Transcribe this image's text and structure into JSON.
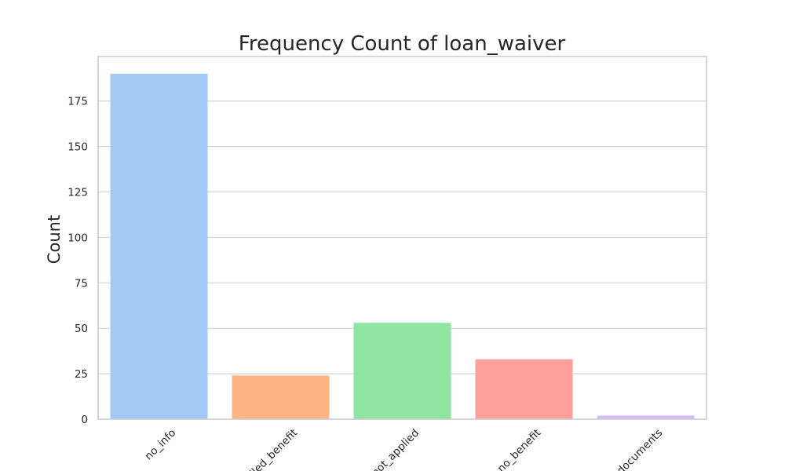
{
  "chart_data": {
    "type": "bar",
    "title": "Frequency Count of loan_waiver",
    "xlabel": "",
    "ylabel": "Count",
    "categories": [
      "no_info",
      "availed_benefit",
      "not_applied",
      "no_benefit",
      "no_documents"
    ],
    "values": [
      190,
      24,
      53,
      33,
      2
    ],
    "colors": [
      "#a1c9f4",
      "#ffb482",
      "#8de5a1",
      "#ff9f9b",
      "#d0bbff"
    ],
    "yticks": [
      0,
      25,
      50,
      75,
      100,
      125,
      150,
      175
    ],
    "ylim": [
      0,
      199.5
    ],
    "grid": true,
    "legend": "none"
  }
}
